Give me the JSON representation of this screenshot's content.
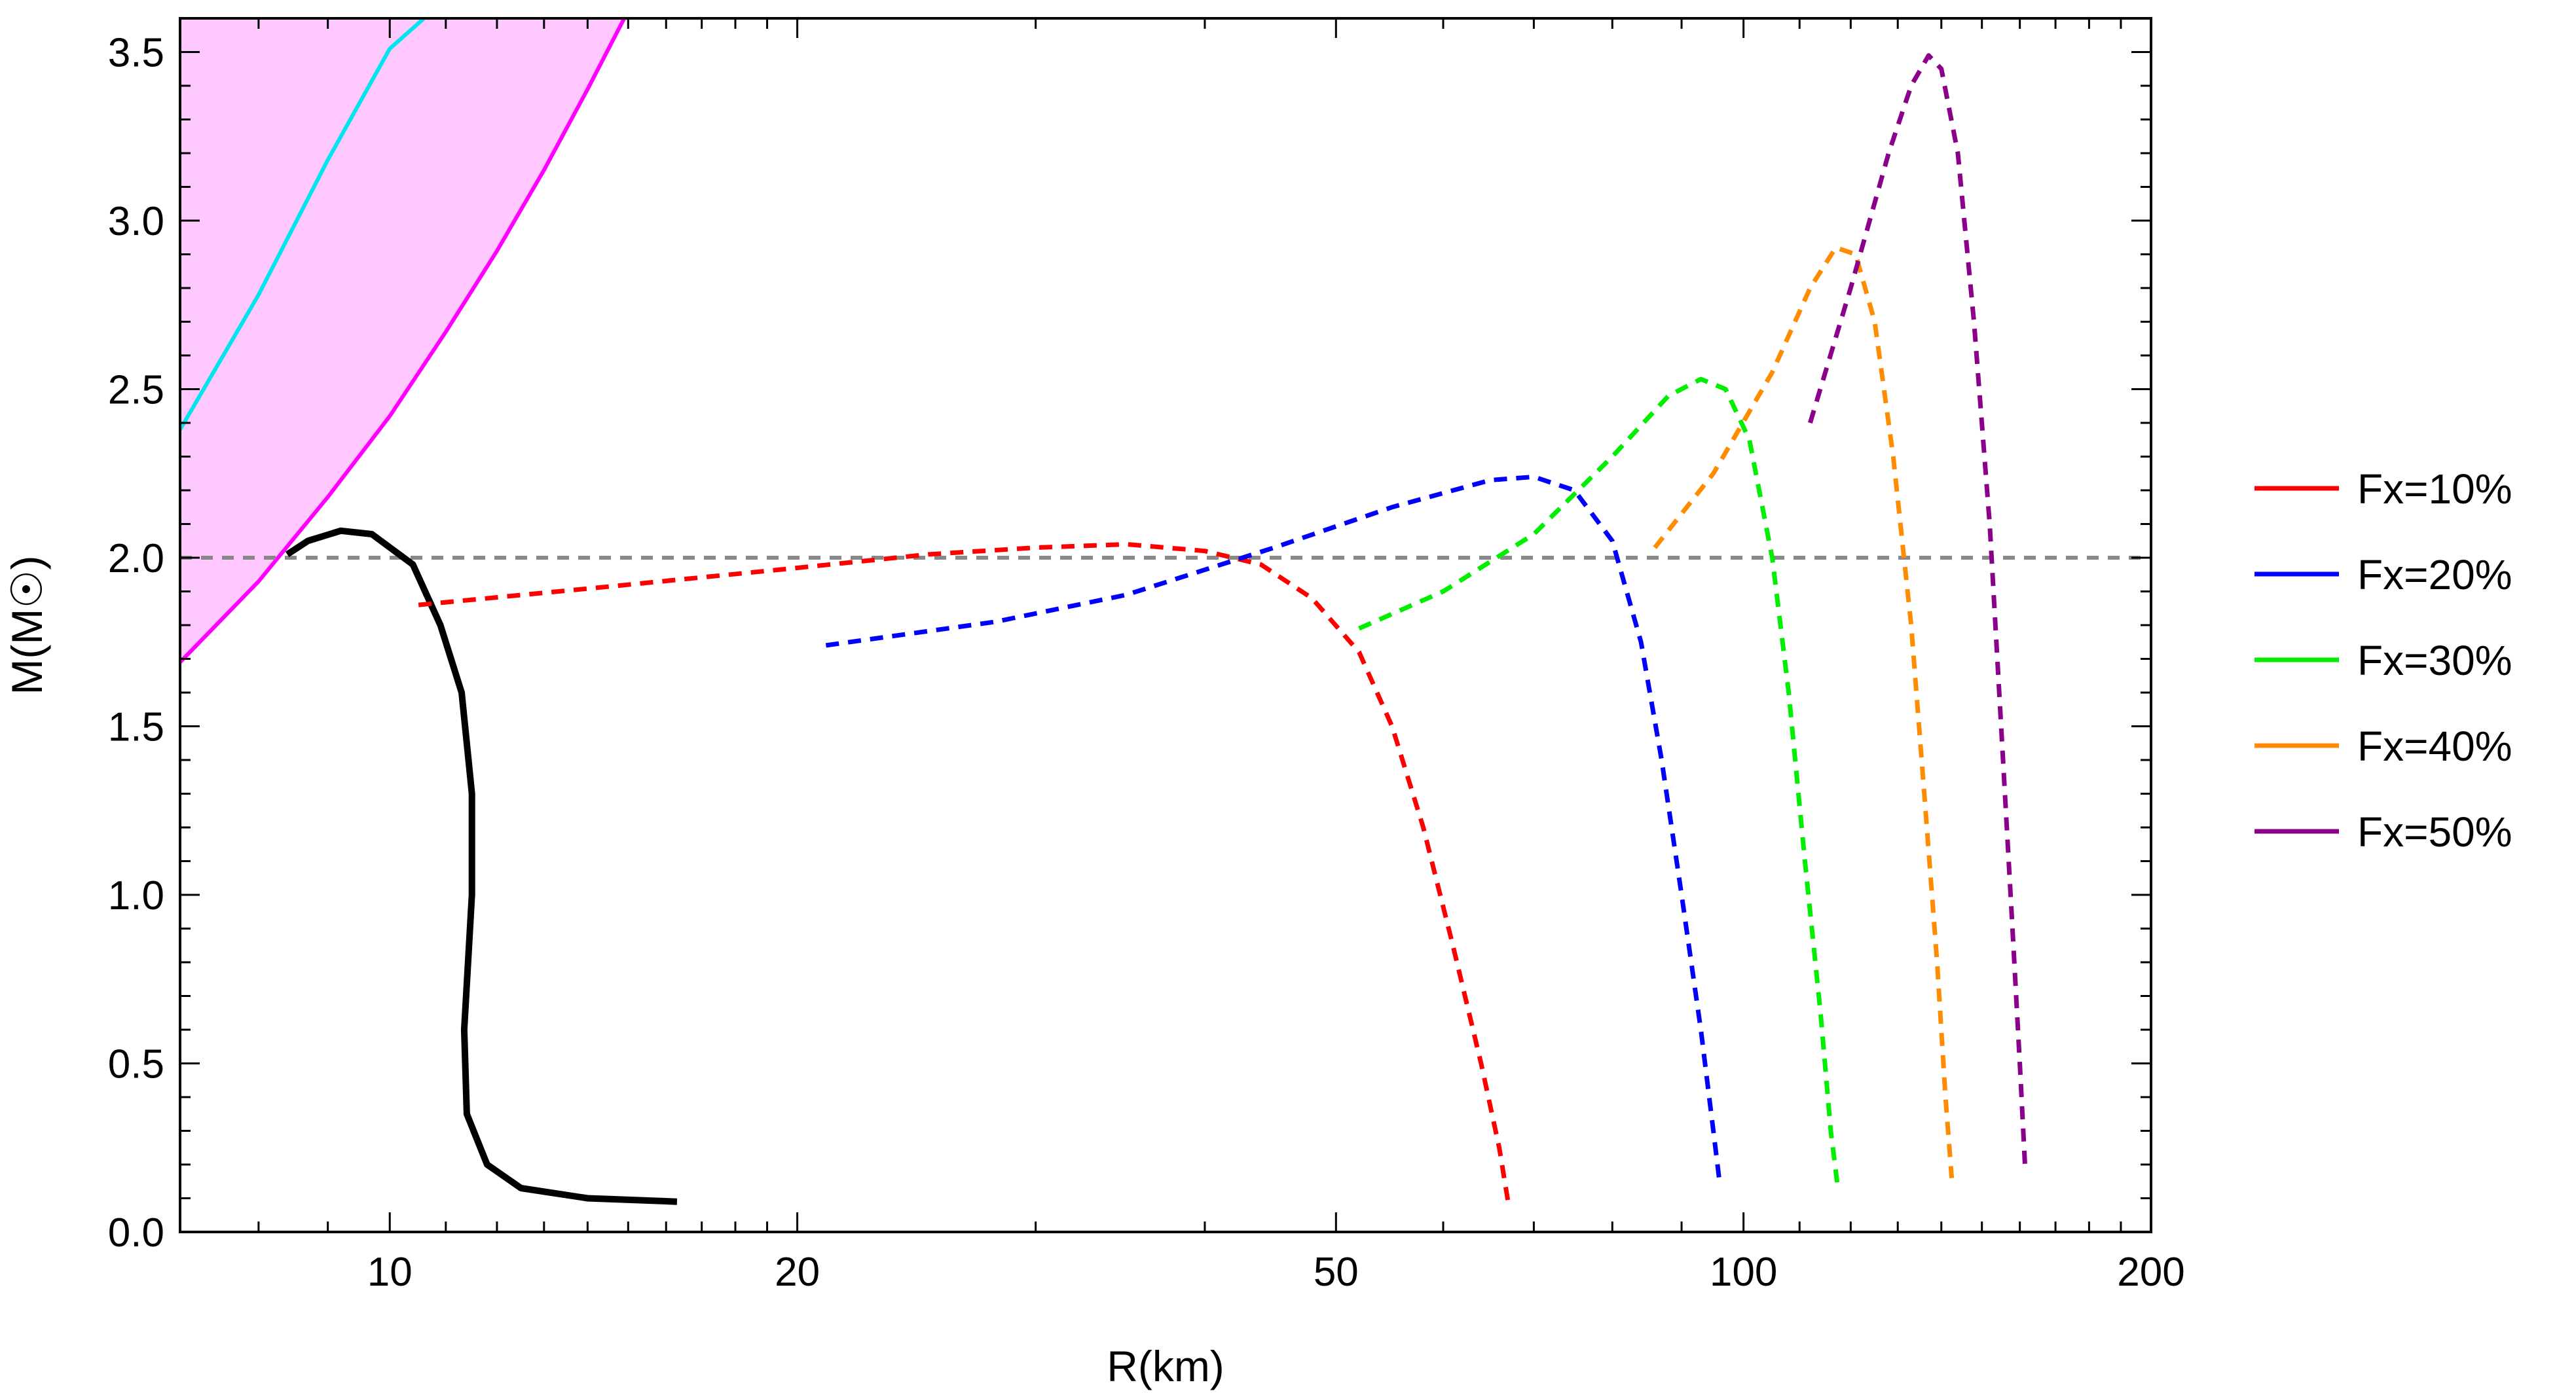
{
  "chart_data": {
    "type": "line",
    "title": "",
    "xlabel": "R(km)",
    "ylabel": "M(M☉)",
    "xscale": "log",
    "xlim": [
      7,
      200
    ],
    "ylim": [
      0,
      3.6
    ],
    "x_ticks": [
      10,
      20,
      50,
      100,
      200
    ],
    "x_tick_labels": [
      "10",
      "20",
      "50",
      "100",
      "200"
    ],
    "y_ticks": [
      0.0,
      0.5,
      1.0,
      1.5,
      2.0,
      2.5,
      3.0,
      3.5
    ],
    "y_tick_labels": [
      "0.0",
      "0.5",
      "1.0",
      "1.5",
      "2.0",
      "2.5",
      "3.0",
      "3.5"
    ],
    "grid": false,
    "legend_position": "right",
    "reference_line": {
      "y": 2.0,
      "color": "#888888",
      "style": "dashed"
    },
    "shaded_regions": [
      {
        "fill": "#c8fdfd",
        "edge_color": "#00e5ee",
        "edge": [
          [
            7,
            2.38
          ],
          [
            8,
            2.78
          ],
          [
            9,
            3.18
          ],
          [
            10,
            3.51
          ],
          [
            10.6,
            3.6
          ]
        ]
      },
      {
        "fill": "#ffc8ff",
        "edge_color": "#ff00ff",
        "edge": [
          [
            7,
            1.69
          ],
          [
            8,
            1.93
          ],
          [
            9,
            2.18
          ],
          [
            10,
            2.42
          ],
          [
            11,
            2.67
          ],
          [
            12,
            2.91
          ],
          [
            13,
            3.15
          ],
          [
            14,
            3.39
          ],
          [
            14.9,
            3.6
          ]
        ]
      }
    ],
    "series": [
      {
        "color": "#000000",
        "style": "solid",
        "points": [
          [
            16.3,
            0.09
          ],
          [
            14,
            0.1
          ],
          [
            12.5,
            0.13
          ],
          [
            11.8,
            0.2
          ],
          [
            11.4,
            0.35
          ],
          [
            11.35,
            0.6
          ],
          [
            11.5,
            1.0
          ],
          [
            11.5,
            1.3
          ],
          [
            11.3,
            1.6
          ],
          [
            10.9,
            1.8
          ],
          [
            10.4,
            1.98
          ],
          [
            9.7,
            2.07
          ],
          [
            9.2,
            2.08
          ],
          [
            8.7,
            2.05
          ],
          [
            8.4,
            2.01
          ]
        ]
      },
      {
        "name": "Fx=10%",
        "color": "#ff0000",
        "style": "dashed",
        "points": [
          [
            10.5,
            1.86
          ],
          [
            15,
            1.92
          ],
          [
            20,
            1.97
          ],
          [
            25,
            2.01
          ],
          [
            30,
            2.03
          ],
          [
            35,
            2.04
          ],
          [
            40,
            2.02
          ],
          [
            44,
            1.98
          ],
          [
            48,
            1.88
          ],
          [
            52,
            1.72
          ],
          [
            55,
            1.5
          ],
          [
            58,
            1.2
          ],
          [
            61,
            0.85
          ],
          [
            64,
            0.5
          ],
          [
            66,
            0.25
          ],
          [
            67,
            0.09
          ]
        ]
      },
      {
        "name": "Fx=20%",
        "color": "#0000ff",
        "style": "dashed",
        "points": [
          [
            21,
            1.74
          ],
          [
            28,
            1.81
          ],
          [
            35,
            1.89
          ],
          [
            45,
            2.03
          ],
          [
            55,
            2.15
          ],
          [
            65,
            2.23
          ],
          [
            70,
            2.24
          ],
          [
            75,
            2.2
          ],
          [
            80,
            2.05
          ],
          [
            84,
            1.75
          ],
          [
            87,
            1.4
          ],
          [
            90,
            1.0
          ],
          [
            93,
            0.6
          ],
          [
            95,
            0.3
          ],
          [
            96,
            0.15
          ]
        ]
      },
      {
        "name": "Fx=30%",
        "color": "#00ee00",
        "style": "dashed",
        "points": [
          [
            52,
            1.79
          ],
          [
            60,
            1.9
          ],
          [
            70,
            2.07
          ],
          [
            80,
            2.3
          ],
          [
            88,
            2.48
          ],
          [
            93,
            2.53
          ],
          [
            97,
            2.5
          ],
          [
            101,
            2.35
          ],
          [
            105,
            2.0
          ],
          [
            108,
            1.6
          ],
          [
            111,
            1.1
          ],
          [
            114,
            0.65
          ],
          [
            116,
            0.3
          ],
          [
            117.5,
            0.12
          ]
        ]
      },
      {
        "name": "Fx=40%",
        "color": "#ff8c00",
        "style": "dashed",
        "points": [
          [
            86,
            2.03
          ],
          [
            95,
            2.25
          ],
          [
            105,
            2.55
          ],
          [
            112,
            2.8
          ],
          [
            117,
            2.92
          ],
          [
            121,
            2.9
          ],
          [
            125,
            2.7
          ],
          [
            129,
            2.3
          ],
          [
            133,
            1.8
          ],
          [
            136,
            1.3
          ],
          [
            139,
            0.8
          ],
          [
            141,
            0.4
          ],
          [
            142.5,
            0.16
          ]
        ]
      },
      {
        "name": "Fx=50%",
        "color": "#8b008b",
        "style": "dashed",
        "points": [
          [
            112,
            2.4
          ],
          [
            120,
            2.8
          ],
          [
            128,
            3.2
          ],
          [
            133,
            3.4
          ],
          [
            137,
            3.49
          ],
          [
            140,
            3.45
          ],
          [
            144,
            3.2
          ],
          [
            148,
            2.7
          ],
          [
            152,
            2.1
          ],
          [
            155,
            1.5
          ],
          [
            158,
            0.9
          ],
          [
            160,
            0.5
          ],
          [
            161.5,
            0.18
          ]
        ]
      }
    ]
  }
}
